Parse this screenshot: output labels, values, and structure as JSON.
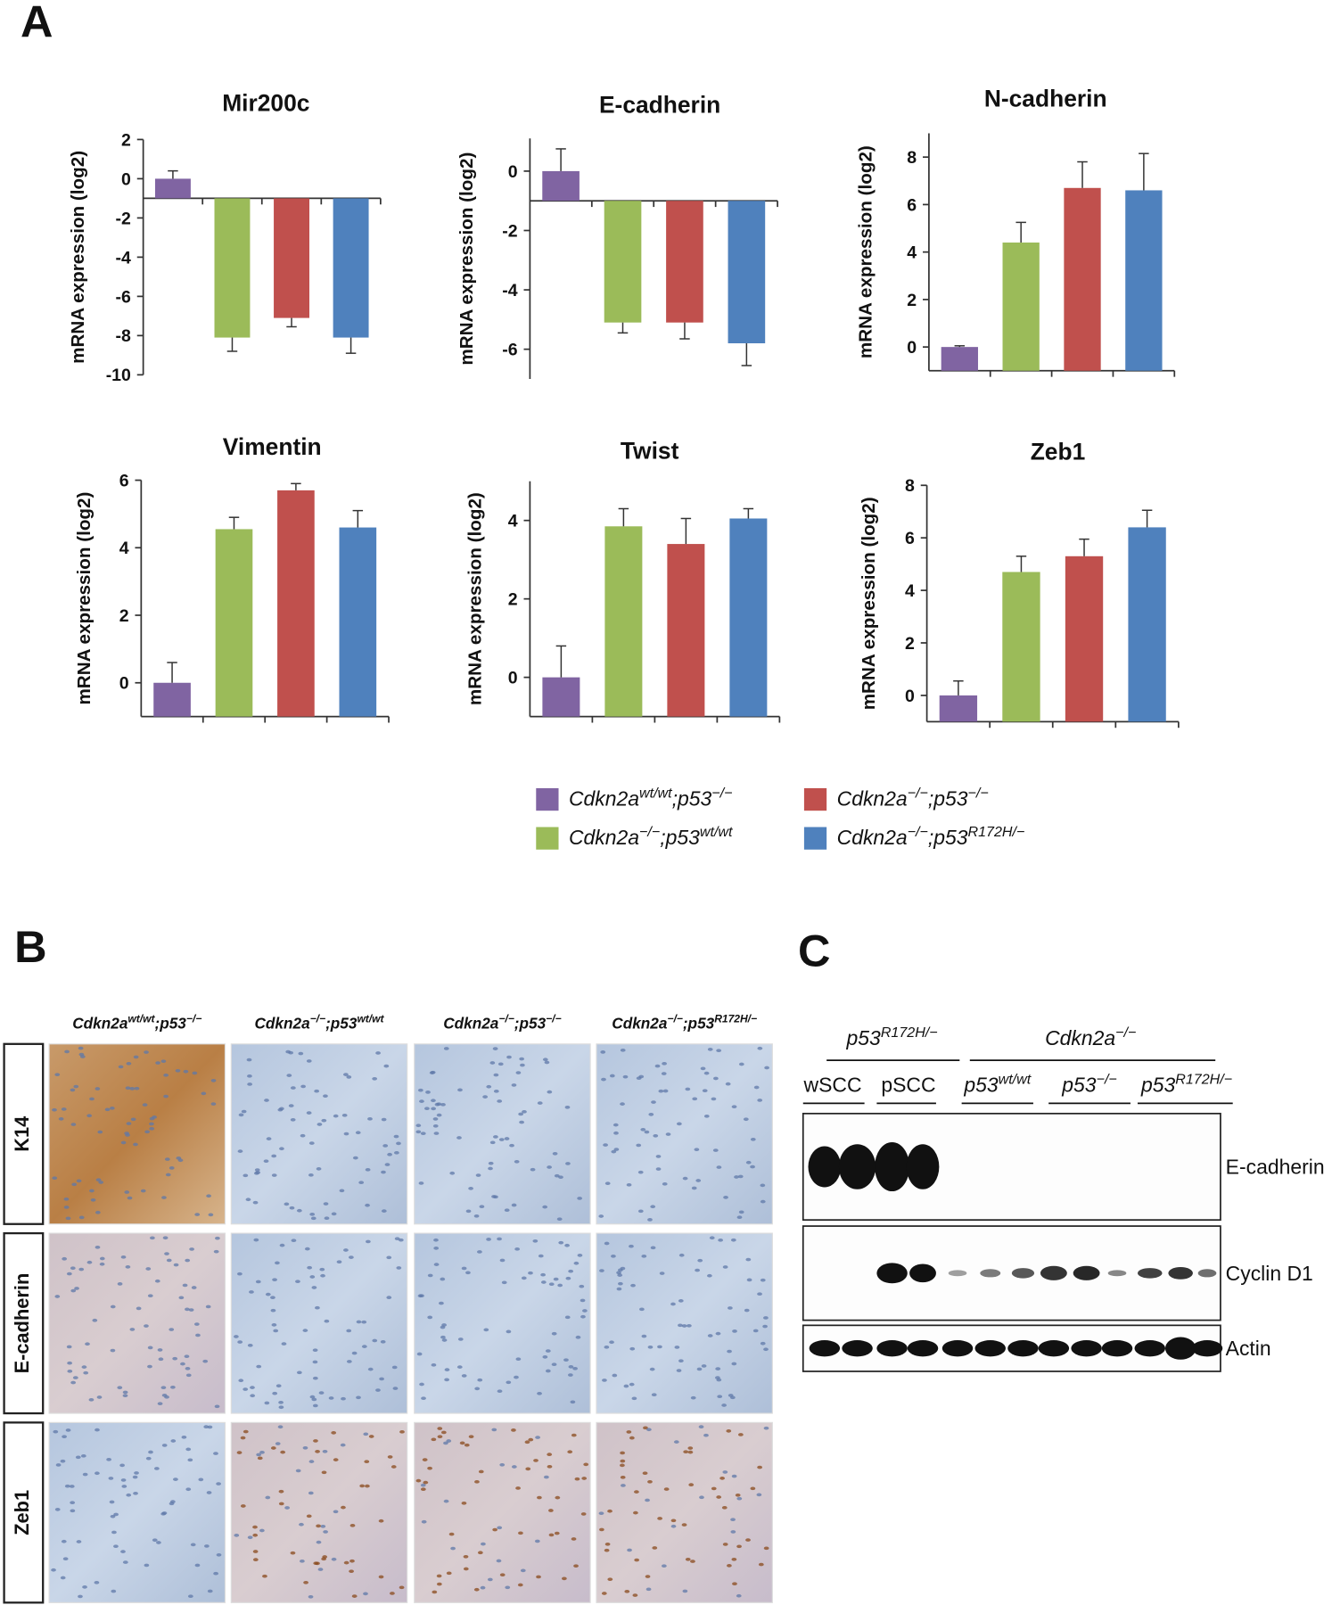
{
  "panel_labels": {
    "a": "A",
    "b": "B",
    "c": "C"
  },
  "legend": [
    {
      "name": [
        "Cdkn2a",
        "wt/wt",
        ";p53",
        "−/−"
      ],
      "color": "#8064a2"
    },
    {
      "name": [
        "Cdkn2a",
        "−/−",
        ";p53",
        "wt/wt"
      ],
      "color": "#9bbb59"
    },
    {
      "name": [
        "Cdkn2a",
        "−/−",
        ";p53",
        "−/−"
      ],
      "color": "#c0504d"
    },
    {
      "name": [
        "Cdkn2a",
        "−/−",
        ";p53",
        "R172H/−"
      ],
      "color": "#4f81bd"
    }
  ],
  "chart_data": [
    {
      "type": "bar",
      "title": "Mir200c",
      "ylabel": "mRNA expression (log2)",
      "values": [
        0,
        -8.1,
        -7.1,
        -8.1
      ],
      "errors": [
        0.4,
        0.7,
        0.45,
        0.8
      ],
      "ylim": [
        -10,
        2
      ],
      "yticks": [
        -10,
        -8,
        -6,
        -4,
        -2,
        0,
        2
      ],
      "x_axis_at": -1
    },
    {
      "type": "bar",
      "title": "E-cadherin",
      "ylabel": "mRNA expression (log2)",
      "values": [
        0,
        -5.1,
        -5.1,
        -5.8
      ],
      "errors": [
        0.75,
        0.35,
        0.55,
        0.75
      ],
      "ylim": [
        -7,
        1.1
      ],
      "yticks": [
        -6,
        -4,
        -2,
        0
      ],
      "x_axis_at": -1
    },
    {
      "type": "bar",
      "title": "N-cadherin",
      "ylabel": "mRNA expression (log2)",
      "values": [
        0,
        4.4,
        6.7,
        6.6
      ],
      "errors": [
        0.05,
        0.85,
        1.1,
        1.55
      ],
      "ylim": [
        -1,
        9
      ],
      "yticks": [
        0,
        2,
        4,
        6,
        8
      ],
      "x_axis_at": -1
    },
    {
      "type": "bar",
      "title": "Vimentin",
      "ylabel": "mRNA expression (log2)",
      "values": [
        0,
        4.55,
        5.7,
        4.6
      ],
      "errors": [
        0.6,
        0.35,
        0.2,
        0.5
      ],
      "ylim": [
        -1,
        6
      ],
      "yticks": [
        0,
        2,
        4,
        6
      ],
      "x_axis_at": -1
    },
    {
      "type": "bar",
      "title": "Twist",
      "ylabel": "mRNA expression (log2)",
      "values": [
        0,
        3.85,
        3.4,
        4.05
      ],
      "errors": [
        0.8,
        0.45,
        0.65,
        0.25
      ],
      "ylim": [
        -1,
        5
      ],
      "yticks": [
        0,
        2,
        4
      ],
      "x_axis_at": -1
    },
    {
      "type": "bar",
      "title": "Zeb1",
      "ylabel": "mRNA expression (log2)",
      "values": [
        0,
        4.7,
        5.3,
        6.4
      ],
      "errors": [
        0.55,
        0.6,
        0.65,
        0.65
      ],
      "ylim": [
        -1,
        8
      ],
      "yticks": [
        0,
        2,
        4,
        6,
        8
      ],
      "x_axis_at": -1
    }
  ],
  "histology": {
    "columns": [
      [
        "Cdkn2a",
        "wt/wt",
        ";p53",
        "−/−"
      ],
      [
        "Cdkn2a",
        "−/−",
        ";p53",
        "wt/wt"
      ],
      [
        "Cdkn2a",
        "−/−",
        ";p53",
        "−/−"
      ],
      [
        "Cdkn2a",
        "−/−",
        ";p53",
        "R172H/−"
      ]
    ],
    "rows": [
      "K14",
      "E-cadherin",
      "Zeb1"
    ]
  },
  "blot": {
    "groups": [
      [
        "p53",
        "R172H/−"
      ],
      [
        "Cdkn2a",
        "−/−"
      ]
    ],
    "lanes": [
      [
        "wSCC"
      ],
      [
        "pSCC"
      ],
      [
        "p53",
        "wt/wt"
      ],
      [
        "p53",
        "−/−"
      ],
      [
        "p53",
        "R172H/−"
      ]
    ],
    "proteins": [
      "E-cadherin",
      "Cyclin D1",
      "Actin"
    ]
  }
}
